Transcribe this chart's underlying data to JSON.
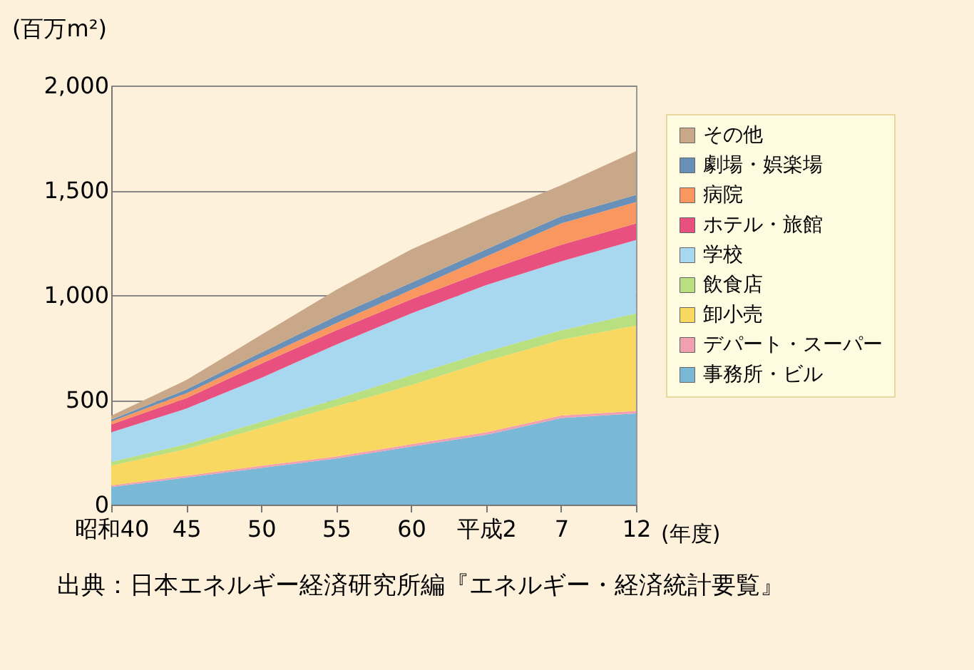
{
  "chart_data": {
    "type": "area",
    "stacked": true,
    "ylabel": "(百万m²)",
    "xlabel": "(年度)",
    "categories": [
      "昭和40",
      "45",
      "50",
      "55",
      "60",
      "平成2",
      "7",
      "12"
    ],
    "ylim": [
      0,
      2000
    ],
    "yticks": [
      {
        "value": 0,
        "label": "0"
      },
      {
        "value": 500,
        "label": "500"
      },
      {
        "value": 1000,
        "label": "1,000"
      },
      {
        "value": 1500,
        "label": "1,500"
      },
      {
        "value": 2000,
        "label": "2,000"
      }
    ],
    "grid": "y",
    "legend": "right",
    "series": [
      {
        "name": "事務所・ビル",
        "color": "#7ab8d8",
        "values": [
          84,
          129,
          175,
          220,
          277,
          333,
          413,
          435
        ]
      },
      {
        "name": "デパート・スーパー",
        "color": "#f0a0b0",
        "values": [
          8,
          9,
          10,
          10,
          11,
          12,
          12,
          12
        ]
      },
      {
        "name": "卸小売",
        "color": "#f8d860",
        "values": [
          94,
          127,
          182,
          239,
          283,
          340,
          362,
          408
        ]
      },
      {
        "name": "飲食店",
        "color": "#b8e080",
        "values": [
          18,
          23,
          28,
          34,
          46,
          45,
          45,
          57
        ]
      },
      {
        "name": "学校",
        "color": "#a8d8f0",
        "values": [
          141,
          170,
          210,
          261,
          295,
          318,
          329,
          351
        ]
      },
      {
        "name": "ホテル・旅館",
        "color": "#e85080",
        "values": [
          38,
          50,
          68,
          68,
          68,
          68,
          79,
          79
        ]
      },
      {
        "name": "病院",
        "color": "#f89860",
        "values": [
          14,
          23,
          28,
          34,
          45,
          68,
          102,
          102
        ]
      },
      {
        "name": "劇場・娯楽場",
        "color": "#6890b8",
        "values": [
          9,
          18,
          25,
          34,
          34,
          34,
          34,
          34
        ]
      },
      {
        "name": "その他",
        "color": "#c8a888",
        "values": [
          18,
          45,
          84,
          125,
          159,
          158,
          148,
          209
        ]
      }
    ],
    "annotations": [
      "出典：日本エネルギー経済研究所編『エネルギー・経済統計要覧』"
    ]
  }
}
